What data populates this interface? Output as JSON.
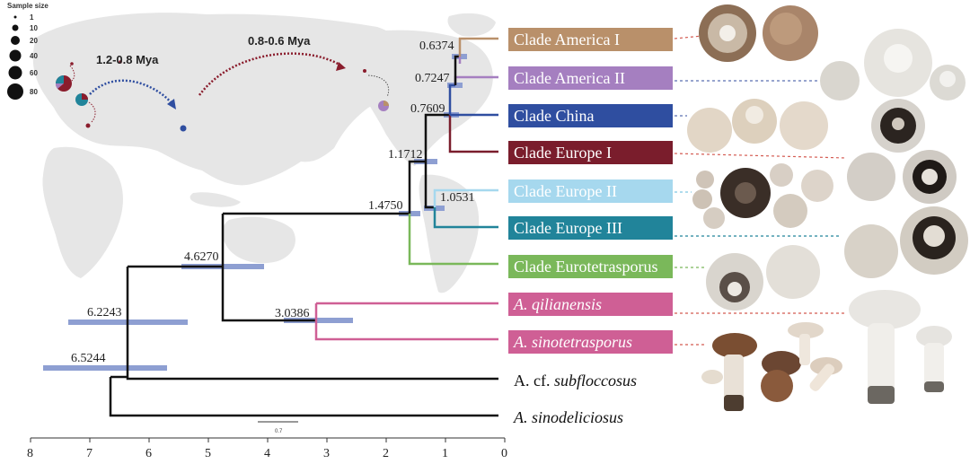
{
  "legend": {
    "title": "Sample size",
    "sizes": [
      "1",
      "10",
      "20",
      "40",
      "60",
      "80"
    ]
  },
  "migrations": [
    {
      "label": "1.2-0.8 Mya"
    },
    {
      "label": "0.8-0.6 Mya"
    }
  ],
  "axis": {
    "ticks": [
      "8",
      "7",
      "6",
      "5",
      "4",
      "3",
      "2",
      "1",
      "0"
    ]
  },
  "scale_bar": {
    "label": "0.7"
  },
  "nodes": [
    {
      "label": "0.6374"
    },
    {
      "label": "0.7247"
    },
    {
      "label": "0.7609"
    },
    {
      "label": "1.1712"
    },
    {
      "label": "1.0531"
    },
    {
      "label": "1.4750"
    },
    {
      "label": "4.6270"
    },
    {
      "label": "3.0386"
    },
    {
      "label": "6.2243"
    },
    {
      "label": "6.5244"
    }
  ],
  "clades": [
    {
      "label": "Clade America I",
      "color": "#b9906a"
    },
    {
      "label": "Clade America II",
      "color": "#a57fc0"
    },
    {
      "label": "Clade China",
      "color": "#2f4ea0"
    },
    {
      "label": "Clade Europe I",
      "color": "#7a1d2c"
    },
    {
      "label": "Clade Europe II",
      "color": "#a6d8ee"
    },
    {
      "label": "Clade Europe III",
      "color": "#21849a"
    },
    {
      "label": "Clade Eurotetrasporus",
      "color": "#7ab85a"
    },
    {
      "label": "A. qilianensis",
      "color": "#cf5f95"
    },
    {
      "label": "A. sinotetrasporus",
      "color": "#cf5f95"
    }
  ],
  "species": [
    {
      "prefix": "A. cf. ",
      "epithet": "subfloccosus"
    },
    {
      "prefix": "A. ",
      "epithet": "sinodeliciosus"
    }
  ],
  "colors": {
    "tree": "#111111",
    "hpd_bar": "#8e9fd2",
    "map": "#e6e6e6",
    "europe_red": "#8a1c2c",
    "china_blue": "#2f4ea0",
    "europe_teal": "#21849a",
    "america_purple": "#a57fc0"
  }
}
